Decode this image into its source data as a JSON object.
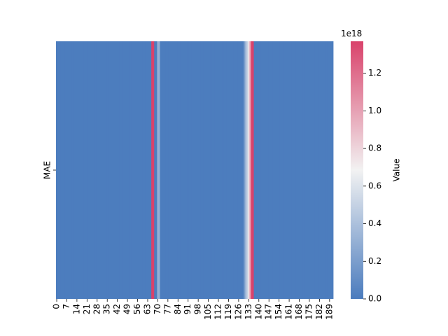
{
  "chart_data": {
    "type": "heatmap",
    "rows": [
      "MAE"
    ],
    "values": [
      [
        0.01,
        0.01,
        0.01,
        0.01,
        0.01,
        0.01,
        0.01,
        0.01,
        0.01,
        0.01,
        0.01,
        0.01,
        0.01,
        0.01,
        0.01,
        0.01,
        0.01,
        0.01,
        0.01,
        0.01,
        0.01,
        0.01,
        0.01,
        0.01,
        0.01,
        0.01,
        0.01,
        0.01,
        0.01,
        0.01,
        0.01,
        0.01,
        0.01,
        0.01,
        0.01,
        0.01,
        0.01,
        0.01,
        0.01,
        0.01,
        0.01,
        0.01,
        0.01,
        0.01,
        0.01,
        0.01,
        0.01,
        0.01,
        0.01,
        0.01,
        0.01,
        0.01,
        0.01,
        0.01,
        0.01,
        0.01,
        0.01,
        0.01,
        0.01,
        0.01,
        0.01,
        0.01,
        0.01,
        0.01,
        0.01,
        0.01,
        1.37,
        1.37,
        0.01,
        0.01,
        0.3,
        0.3,
        0.01,
        0.01,
        0.01,
        0.01,
        0.01,
        0.01,
        0.01,
        0.01,
        0.01,
        0.01,
        0.01,
        0.01,
        0.01,
        0.01,
        0.01,
        0.01,
        0.01,
        0.01,
        0.01,
        0.01,
        0.01,
        0.01,
        0.01,
        0.01,
        0.01,
        0.01,
        0.01,
        0.01,
        0.01,
        0.01,
        0.01,
        0.01,
        0.01,
        0.01,
        0.01,
        0.01,
        0.01,
        0.01,
        0.01,
        0.01,
        0.01,
        0.01,
        0.01,
        0.01,
        0.01,
        0.01,
        0.01,
        0.01,
        0.01,
        0.01,
        0.01,
        0.01,
        0.01,
        0.01,
        0.01,
        0.01,
        0.01,
        0.01,
        0.2,
        0.35,
        0.5,
        0.75,
        1.0,
        1.37,
        1.37,
        0.01,
        0.01,
        0.01,
        0.01,
        0.01,
        0.01,
        0.01,
        0.01,
        0.01,
        0.01,
        0.01,
        0.01,
        0.01,
        0.01,
        0.01,
        0.01,
        0.01,
        0.01,
        0.01,
        0.01,
        0.01,
        0.01,
        0.01,
        0.01,
        0.01,
        0.01,
        0.01,
        0.01,
        0.01,
        0.01,
        0.01,
        0.01,
        0.01,
        0.01,
        0.01,
        0.01,
        0.01,
        0.01,
        0.01,
        0.01,
        0.01,
        0.01,
        0.01,
        0.01,
        0.01,
        0.01,
        0.01,
        0.01,
        0.01,
        0.01,
        0.01,
        0.01,
        0.01,
        0.01,
        0.01
      ]
    ],
    "xticks": [
      0,
      7,
      14,
      21,
      28,
      35,
      42,
      49,
      56,
      63,
      70,
      77,
      84,
      91,
      98,
      105,
      112,
      119,
      126,
      133,
      140,
      147,
      154,
      161,
      168,
      175,
      182,
      189
    ],
    "colormap": [
      "#4a7bbd",
      "#f2f2f2",
      "#d9426b"
    ],
    "clim": [
      0,
      1.37
    ],
    "cticks": [
      {
        "value": 0,
        "label": "0.0"
      },
      0.2,
      0.4,
      0.6,
      0.8,
      {
        "value": 1,
        "label": "1.0"
      },
      1.2
    ],
    "colorbar_offset": "1e18",
    "colorbar_label": "Value"
  }
}
